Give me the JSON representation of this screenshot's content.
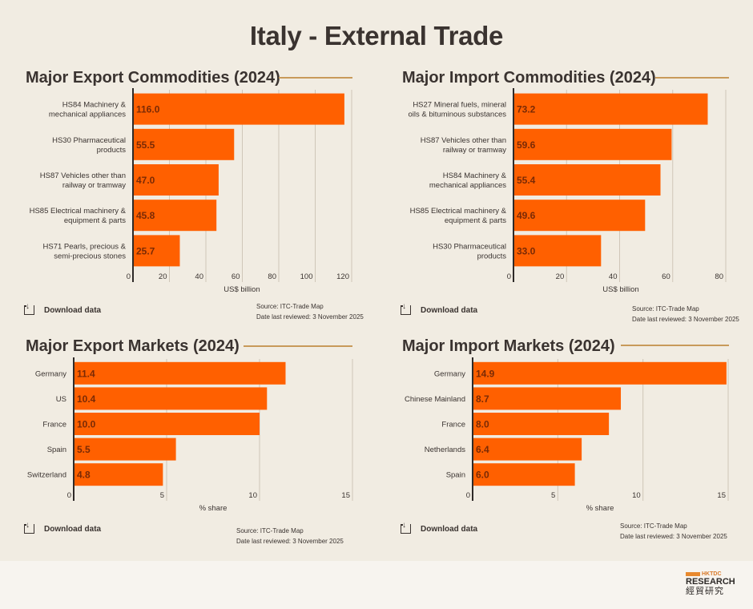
{
  "page": {
    "title": "Italy - External Trade",
    "download_label": "Download data",
    "download_icon": "download-icon",
    "source": "Source: ITC-Trade Map",
    "reviewed": "Date last reviewed: 3 November 2025"
  },
  "logo": {
    "brand": "HKTDC",
    "research": "RESEARCH",
    "chinese": "經貿研究"
  },
  "colors": {
    "bar": "#ff6000",
    "bar_label": "#7a2a05",
    "axis": "#2e2a28",
    "grid": "#cfc6b8",
    "rule": "#c89a5a"
  },
  "chart_data": [
    {
      "id": "export-commodities",
      "type": "bar",
      "orientation": "horizontal",
      "title": "Major Export Commodities (2024)",
      "categories": [
        [
          "HS84 Machinery &",
          "mechanical appliances"
        ],
        [
          "HS30 Pharmaceutical",
          "products"
        ],
        [
          "HS87 Vehicles other than",
          "railway or tramway"
        ],
        [
          "HS85 Electrical machinery &",
          "equipment & parts"
        ],
        [
          "HS71 Pearls, precious &",
          "semi-precious stones"
        ]
      ],
      "values": [
        116.0,
        55.5,
        47.0,
        45.8,
        25.7
      ],
      "value_labels": [
        "116.0",
        "55.5",
        "47.0",
        "45.8",
        "25.7"
      ],
      "xlabel": "US$ billion",
      "xlim": [
        0,
        120
      ],
      "xticks": [
        0,
        20,
        40,
        60,
        80,
        100,
        120
      ],
      "grid": true,
      "legend": "none"
    },
    {
      "id": "import-commodities",
      "type": "bar",
      "orientation": "horizontal",
      "title": "Major Import Commodities (2024)",
      "categories": [
        [
          "HS27 Mineral fuels, mineral",
          "oils & bituminous substances"
        ],
        [
          "HS87 Vehicles other than",
          "railway or tramway"
        ],
        [
          "HS84 Machinery &",
          "mechanical appliances"
        ],
        [
          "HS85 Electrical machinery &",
          "equipment & parts"
        ],
        [
          "HS30 Pharmaceutical",
          "products"
        ]
      ],
      "values": [
        73.2,
        59.6,
        55.4,
        49.6,
        33.0
      ],
      "value_labels": [
        "73.2",
        "59.6",
        "55.4",
        "49.6",
        "33.0"
      ],
      "xlabel": "US$ billion",
      "xlim": [
        0,
        80
      ],
      "xticks": [
        0,
        20,
        40,
        60,
        80
      ],
      "grid": true,
      "legend": "none"
    },
    {
      "id": "export-markets",
      "type": "bar",
      "orientation": "horizontal",
      "title": "Major Export Markets (2024)",
      "categories": [
        [
          "Germany"
        ],
        [
          "US"
        ],
        [
          "France"
        ],
        [
          "Spain"
        ],
        [
          "Switzerland"
        ]
      ],
      "values": [
        11.4,
        10.4,
        10.0,
        5.5,
        4.8
      ],
      "value_labels": [
        "11.4",
        "10.4",
        "10.0",
        "5.5",
        "4.8"
      ],
      "xlabel": "% share",
      "xlim": [
        0,
        15
      ],
      "xticks": [
        0,
        5,
        10,
        15
      ],
      "grid": true,
      "legend": "none"
    },
    {
      "id": "import-markets",
      "type": "bar",
      "orientation": "horizontal",
      "title": "Major Import Markets (2024)",
      "categories": [
        [
          "Germany"
        ],
        [
          "Chinese Mainland"
        ],
        [
          "France"
        ],
        [
          "Netherlands"
        ],
        [
          "Spain"
        ]
      ],
      "values": [
        14.9,
        8.7,
        8.0,
        6.4,
        6.0
      ],
      "value_labels": [
        "14.9",
        "8.7",
        "8.0",
        "6.4",
        "6.0"
      ],
      "xlabel": "% share",
      "xlim": [
        0,
        15
      ],
      "xticks": [
        0,
        5,
        10,
        15
      ],
      "grid": true,
      "legend": "none"
    }
  ]
}
